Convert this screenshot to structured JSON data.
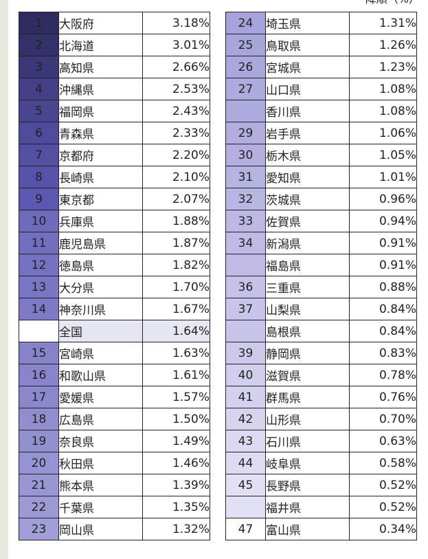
{
  "sort_note": "降順（%）",
  "left_rows": [
    {
      "rank": "1",
      "name": "大阪府",
      "value": "3.18%",
      "rank_bg": "#2e2b60",
      "row_bg": "#ffffff"
    },
    {
      "rank": "2",
      "name": "北海道",
      "value": "3.01%",
      "rank_bg": "#343069",
      "row_bg": "#ffffff"
    },
    {
      "rank": "3",
      "name": "高知県",
      "value": "2.66%",
      "rank_bg": "#3c3878",
      "row_bg": "#ffffff"
    },
    {
      "rank": "4",
      "name": "沖縄県",
      "value": "2.53%",
      "rank_bg": "#443f86",
      "row_bg": "#ffffff"
    },
    {
      "rank": "5",
      "name": "福岡県",
      "value": "2.43%",
      "rank_bg": "#4a4591",
      "row_bg": "#ffffff"
    },
    {
      "rank": "6",
      "name": "青森県",
      "value": "2.33%",
      "rank_bg": "#4f4a9b",
      "row_bg": "#ffffff"
    },
    {
      "rank": "7",
      "name": "京都府",
      "value": "2.20%",
      "rank_bg": "#544fa3",
      "row_bg": "#ffffff"
    },
    {
      "rank": "8",
      "name": "長崎県",
      "value": "2.10%",
      "rank_bg": "#5853aa",
      "row_bg": "#ffffff"
    },
    {
      "rank": "9",
      "name": "東京都",
      "value": "2.07%",
      "rank_bg": "#5c57b0",
      "row_bg": "#ffffff"
    },
    {
      "rank": "10",
      "name": "兵庫県",
      "value": "1.88%",
      "rank_bg": "#6f6abc",
      "row_bg": "#ffffff"
    },
    {
      "rank": "11",
      "name": "鹿児島県",
      "value": "1.87%",
      "rank_bg": "#726dbe",
      "row_bg": "#ffffff"
    },
    {
      "rank": "12",
      "name": "徳島県",
      "value": "1.82%",
      "rank_bg": "#7671c1",
      "row_bg": "#ffffff"
    },
    {
      "rank": "13",
      "name": "大分県",
      "value": "1.70%",
      "rank_bg": "#7b76c4",
      "row_bg": "#ffffff"
    },
    {
      "rank": "14",
      "name": "神奈川県",
      "value": "1.67%",
      "rank_bg": "#7f7ac6",
      "row_bg": "#ffffff"
    },
    {
      "rank": "",
      "name": "全国",
      "value": "1.64%",
      "rank_bg": "#ffffff",
      "row_bg": "#e7e6f3"
    },
    {
      "rank": "15",
      "name": "宮崎県",
      "value": "1.63%",
      "rank_bg": "#8782ca",
      "row_bg": "#ffffff"
    },
    {
      "rank": "16",
      "name": "和歌山県",
      "value": "1.61%",
      "rank_bg": "#8984cb",
      "row_bg": "#ffffff"
    },
    {
      "rank": "17",
      "name": "愛媛県",
      "value": "1.57%",
      "rank_bg": "#8c87cc",
      "row_bg": "#ffffff"
    },
    {
      "rank": "18",
      "name": "広島県",
      "value": "1.50%",
      "rank_bg": "#918dcf",
      "row_bg": "#ffffff"
    },
    {
      "rank": "19",
      "name": "奈良県",
      "value": "1.49%",
      "rank_bg": "#9390d0",
      "row_bg": "#ffffff"
    },
    {
      "rank": "20",
      "name": "秋田県",
      "value": "1.46%",
      "rank_bg": "#9693d2",
      "row_bg": "#ffffff"
    },
    {
      "rank": "21",
      "name": "熊本県",
      "value": "1.39%",
      "rank_bg": "#9996d3",
      "row_bg": "#ffffff"
    },
    {
      "rank": "22",
      "name": "千葉県",
      "value": "1.35%",
      "rank_bg": "#9c99d5",
      "row_bg": "#ffffff"
    },
    {
      "rank": "23",
      "name": "岡山県",
      "value": "1.32%",
      "rank_bg": "#a09dd7",
      "row_bg": "#ffffff"
    }
  ],
  "right_rows": [
    {
      "rank": "24",
      "name": "埼玉県",
      "value": "1.31%",
      "rank_bg": "#a6a3da",
      "row_bg": "#ffffff"
    },
    {
      "rank": "25",
      "name": "鳥取県",
      "value": "1.26%",
      "rank_bg": "#a8a5db",
      "row_bg": "#ffffff"
    },
    {
      "rank": "26",
      "name": "宮城県",
      "value": "1.23%",
      "rank_bg": "#aaa7dc",
      "row_bg": "#ffffff"
    },
    {
      "rank": "27",
      "name": "山口県",
      "value": "1.08%",
      "rank_bg": "#adaadd",
      "row_bg": "#ffffff"
    },
    {
      "rank": "",
      "name": "香川県",
      "value": "1.08%",
      "rank_bg": "#adaadd",
      "row_bg": "#ffffff"
    },
    {
      "rank": "29",
      "name": "岩手県",
      "value": "1.06%",
      "rank_bg": "#b1aedf",
      "row_bg": "#ffffff"
    },
    {
      "rank": "30",
      "name": "栃木県",
      "value": "1.05%",
      "rank_bg": "#b3b0e0",
      "row_bg": "#ffffff"
    },
    {
      "rank": "31",
      "name": "愛知県",
      "value": "1.01%",
      "rank_bg": "#b5b3e1",
      "row_bg": "#ffffff"
    },
    {
      "rank": "32",
      "name": "茨城県",
      "value": "0.96%",
      "rank_bg": "#b8b6e2",
      "row_bg": "#ffffff"
    },
    {
      "rank": "33",
      "name": "佐賀県",
      "value": "0.94%",
      "rank_bg": "#bbb9e4",
      "row_bg": "#ffffff"
    },
    {
      "rank": "34",
      "name": "新潟県",
      "value": "0.91%",
      "rank_bg": "#bebce5",
      "row_bg": "#ffffff"
    },
    {
      "rank": "",
      "name": "福島県",
      "value": "0.91%",
      "rank_bg": "#bebce5",
      "row_bg": "#ffffff"
    },
    {
      "rank": "36",
      "name": "三重県",
      "value": "0.88%",
      "rank_bg": "#c4c2e8",
      "row_bg": "#ffffff"
    },
    {
      "rank": "37",
      "name": "山梨県",
      "value": "0.84%",
      "rank_bg": "#c7c5e9",
      "row_bg": "#ffffff"
    },
    {
      "rank": "",
      "name": "島根県",
      "value": "0.84%",
      "rank_bg": "#c7c5e9",
      "row_bg": "#ffffff"
    },
    {
      "rank": "39",
      "name": "静岡県",
      "value": "0.83%",
      "rank_bg": "#cccaeb",
      "row_bg": "#ffffff"
    },
    {
      "rank": "40",
      "name": "滋賀県",
      "value": "0.78%",
      "rank_bg": "#d0ceed",
      "row_bg": "#ffffff"
    },
    {
      "rank": "41",
      "name": "群馬県",
      "value": "0.76%",
      "rank_bg": "#d3d1ee",
      "row_bg": "#ffffff"
    },
    {
      "rank": "42",
      "name": "山形県",
      "value": "0.70%",
      "rank_bg": "#d6d5ef",
      "row_bg": "#ffffff"
    },
    {
      "rank": "43",
      "name": "石川県",
      "value": "0.63%",
      "rank_bg": "#dad9f1",
      "row_bg": "#ffffff"
    },
    {
      "rank": "44",
      "name": "岐阜県",
      "value": "0.58%",
      "rank_bg": "#dedcf2",
      "row_bg": "#ffffff"
    },
    {
      "rank": "45",
      "name": "長野県",
      "value": "0.52%",
      "rank_bg": "#e2e1f4",
      "row_bg": "#ffffff"
    },
    {
      "rank": "",
      "name": "福井県",
      "value": "0.52%",
      "rank_bg": "#e2e1f4",
      "row_bg": "#ffffff"
    },
    {
      "rank": "47",
      "name": "富山県",
      "value": "0.34%",
      "rank_bg": "#ffffff",
      "row_bg": "#ffffff"
    }
  ]
}
